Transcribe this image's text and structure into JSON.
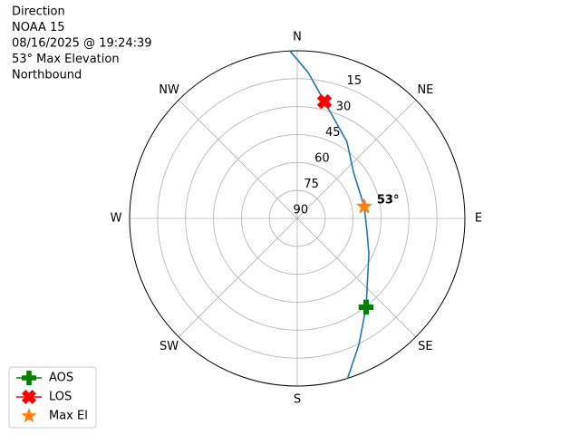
{
  "chart_data": {
    "type": "polar",
    "title_lines": [
      "Direction",
      "NOAA 15",
      "08/16/2025 @ 19:24:39",
      "53° Max Elevation",
      "Northbound"
    ],
    "xticks": [
      {
        "value": 0,
        "label": "N"
      },
      {
        "value": 45,
        "label": "NE"
      },
      {
        "value": 90,
        "label": "E"
      },
      {
        "value": 135,
        "label": "SE"
      },
      {
        "value": 180,
        "label": "S"
      },
      {
        "value": 225,
        "label": "SW"
      },
      {
        "value": 270,
        "label": "W"
      },
      {
        "value": 315,
        "label": "NW"
      }
    ],
    "ylim": [
      90,
      0
    ],
    "yticks": [
      15,
      30,
      45,
      60,
      75,
      90
    ],
    "grid": true,
    "legend": "lower left",
    "annotation": "53°",
    "series": [
      {
        "color": "#1f77b4",
        "line": true,
        "x": [
          -2.5,
          4.3,
          13.1,
          33,
          50.6,
          80,
          100,
          116.3,
          142.2,
          153.9,
          162.5
        ],
        "values": [
          0,
          11.5,
          25.6,
          41,
          50.9,
          53.5,
          52,
          47.1,
          29.7,
          14.7,
          0
        ]
      },
      {
        "name": "AOS",
        "color": "green",
        "marker": "plus",
        "line": true,
        "x": [
          142.2
        ],
        "values": [
          29.7
        ]
      },
      {
        "name": "LOS",
        "color": "red",
        "marker": "x",
        "line": true,
        "x": [
          13.1
        ],
        "values": [
          25.6
        ]
      },
      {
        "name": "Max El",
        "color": "#ff7f0e",
        "marker": "star",
        "line": false,
        "x": [
          80
        ],
        "values": [
          53.5
        ]
      }
    ]
  }
}
